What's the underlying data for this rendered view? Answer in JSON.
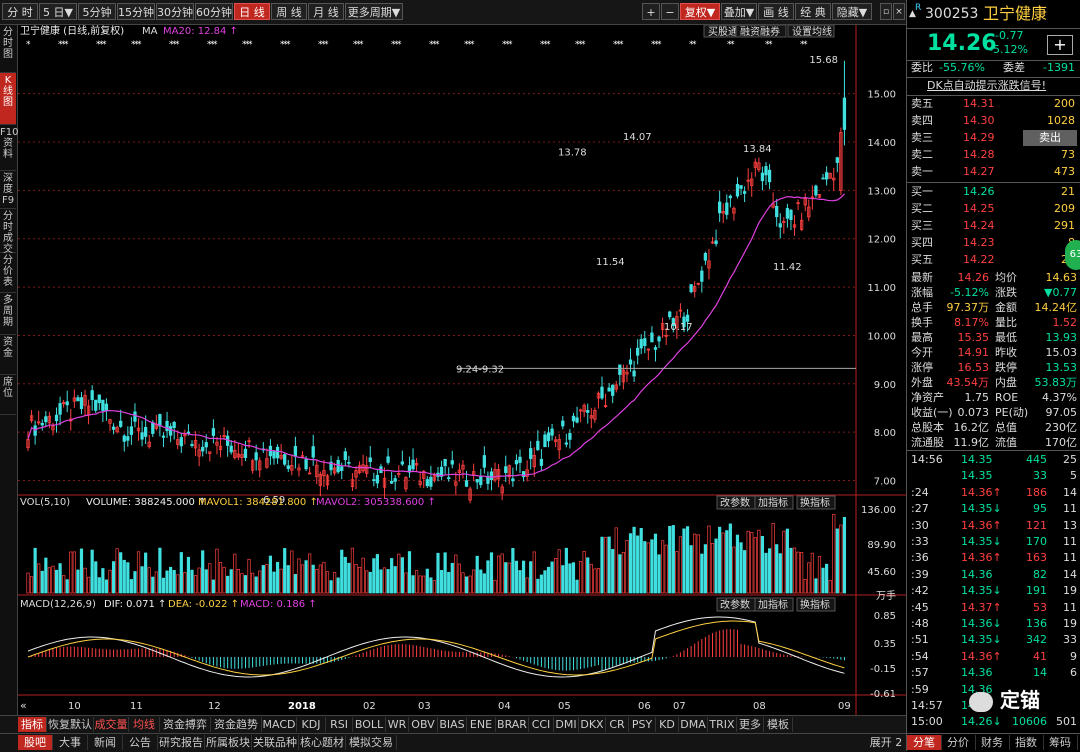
{
  "toolbar": {
    "periods": [
      "分 时",
      "5 日▼",
      "5分钟",
      "15分钟",
      "30分钟",
      "60分钟",
      "日 线",
      "周 线",
      "月 线",
      "更多周期▼"
    ],
    "active_period": "日 线",
    "right_buttons": [
      "+",
      "−",
      "复权▼",
      "叠加▼",
      "画 线",
      "经 典",
      "隐藏▼"
    ]
  },
  "left_tabs": [
    "分时图",
    "K线图",
    "F10资料",
    "深度F9",
    "分时成交",
    "分价表",
    "多周期",
    "资金",
    "席位"
  ],
  "chart": {
    "header_left": "卫宁健康 (日线,前复权)",
    "ma_label": "MA",
    "ma20_label": "MA20: 12.84 ↑",
    "buttons": [
      "买股通",
      "融资融券",
      "设置均线"
    ],
    "price_labels": [
      "15.00",
      "14.00",
      "13.00",
      "12.00",
      "11.00",
      "10.00",
      "9.00",
      "8.00",
      "7.00"
    ],
    "annotations": [
      "15.68",
      "13.78",
      "14.07",
      "13.84",
      "11.54",
      "11.42",
      "10.17",
      "6.59",
      "9.24-9.32"
    ],
    "vol_header": "VOL(5,10)",
    "vol_value": "VOLUME: 388245.000 ↑",
    "mavol1": "MAVOL1: 384281.800 ↑",
    "mavol2": "MAVOL2: 305338.600 ↑",
    "vol_labels": [
      "136.00",
      "89.90",
      "45.60",
      "万手"
    ],
    "panel_buttons": [
      "改参数",
      "加指标",
      "换指标"
    ],
    "macd_header": "MACD(12,26,9)",
    "dif": "DIF: 0.071 ↑",
    "dea": "DEA: -0.022 ↑",
    "macd": "MACD: 0.186 ↑",
    "macd_labels": [
      "0.85",
      "0.35",
      "-0.15",
      "-0.61"
    ],
    "x_labels": [
      "10",
      "11",
      "12",
      "2018",
      "02",
      "03",
      "04",
      "05",
      "06",
      "07",
      "08",
      "09"
    ],
    "nav": "«"
  },
  "bottom_tabs1": [
    "指标",
    "恢复默认",
    "成交量",
    "均线",
    "资金搏弈",
    "资金趋势",
    "MACD",
    "KDJ",
    "RSI",
    "BOLL",
    "WR",
    "OBV",
    "BIAS",
    "ENE",
    "BRAR",
    "CCI",
    "DMI",
    "DKX",
    "CR",
    "PSY",
    "KD",
    "DMA",
    "TRIX",
    "更多",
    "模板"
  ],
  "bottom_tabs2": [
    "股吧",
    "大事",
    "新闻",
    "公告",
    "研究报告",
    "所属板块",
    "关联品种",
    "核心题材",
    "模拟交易"
  ],
  "expand": "展开 2",
  "right_panel": {
    "code": "300253",
    "name": "卫宁健康",
    "price": "14.26",
    "change": "-0.77",
    "change_pct": "-5.12%",
    "weibi_label": "委比",
    "weibi": "-55.76%",
    "weicha_label": "委差",
    "weicha": "-1391",
    "signal": "DK点自动提示涨跌信号!",
    "sell_label": "卖出",
    "asks": [
      {
        "label": "卖五",
        "price": "14.31",
        "vol": "200"
      },
      {
        "label": "卖四",
        "price": "14.30",
        "vol": "1028"
      },
      {
        "label": "卖三",
        "price": "14.29",
        "vol": ""
      },
      {
        "label": "卖二",
        "price": "14.28",
        "vol": "73"
      },
      {
        "label": "卖一",
        "price": "14.27",
        "vol": "473"
      }
    ],
    "bids": [
      {
        "label": "买一",
        "price": "14.26",
        "vol": "21"
      },
      {
        "label": "买二",
        "price": "14.25",
        "vol": "209"
      },
      {
        "label": "买三",
        "price": "14.24",
        "vol": "291"
      },
      {
        "label": "买四",
        "price": "14.23",
        "vol": "8"
      },
      {
        "label": "买五",
        "price": "14.22",
        "vol": "23"
      }
    ],
    "stats": [
      [
        "最新",
        "14.26",
        "均价",
        "14.63"
      ],
      [
        "涨幅",
        "-5.12%",
        "涨跌",
        "▼0.77"
      ],
      [
        "总手",
        "97.37万",
        "金额",
        "14.24亿"
      ],
      [
        "换手",
        "8.17%",
        "量比",
        "1.52"
      ],
      [
        "最高",
        "15.35",
        "最低",
        "13.93"
      ],
      [
        "今开",
        "14.91",
        "昨收",
        "15.03"
      ],
      [
        "涨停",
        "16.53",
        "跌停",
        "13.53"
      ],
      [
        "外盘",
        "43.54万",
        "内盘",
        "53.83万"
      ],
      [
        "净资产",
        "1.75",
        "ROE",
        "4.37%"
      ],
      [
        "收益(一)",
        "0.073",
        "PE(动)",
        "97.05"
      ],
      [
        "总股本",
        "16.2亿",
        "总值",
        "230亿"
      ],
      [
        "流通股",
        "11.9亿",
        "流值",
        "170亿"
      ]
    ],
    "trades": [
      [
        "14:56",
        "14.35",
        "445",
        "25",
        ""
      ],
      [
        "",
        "14.35",
        "33",
        "5",
        ""
      ],
      [
        ":24",
        "14.36↑",
        "186",
        "14",
        ""
      ],
      [
        ":27",
        "14.35↓",
        "95",
        "11",
        ""
      ],
      [
        ":30",
        "14.36↑",
        "121",
        "13",
        ""
      ],
      [
        ":33",
        "14.35↓",
        "170",
        "11",
        ""
      ],
      [
        ":36",
        "14.36↑",
        "163",
        "11",
        ""
      ],
      [
        ":39",
        "14.36",
        "82",
        "14",
        ""
      ],
      [
        ":42",
        "14.35↓",
        "191",
        "19",
        ""
      ],
      [
        ":45",
        "14.37↑",
        "53",
        "11",
        ""
      ],
      [
        ":48",
        "14.36↓",
        "136",
        "19",
        ""
      ],
      [
        ":51",
        "14.35↓",
        "342",
        "33",
        ""
      ],
      [
        ":54",
        "14.36↑",
        "41",
        "9",
        ""
      ],
      [
        ":57",
        "14.36",
        "14",
        "6",
        ""
      ],
      [
        ":59",
        "14.36",
        "",
        "",
        ""
      ],
      [
        "14:57",
        "14.35",
        "",
        "",
        ""
      ],
      [
        "15:00",
        "14.26↓",
        "10606",
        "501",
        ""
      ]
    ],
    "watermark": "定锚",
    "bottom_tabs": [
      "分笔",
      "分价",
      "财务",
      "指数",
      "筹码"
    ],
    "badge": "63"
  }
}
